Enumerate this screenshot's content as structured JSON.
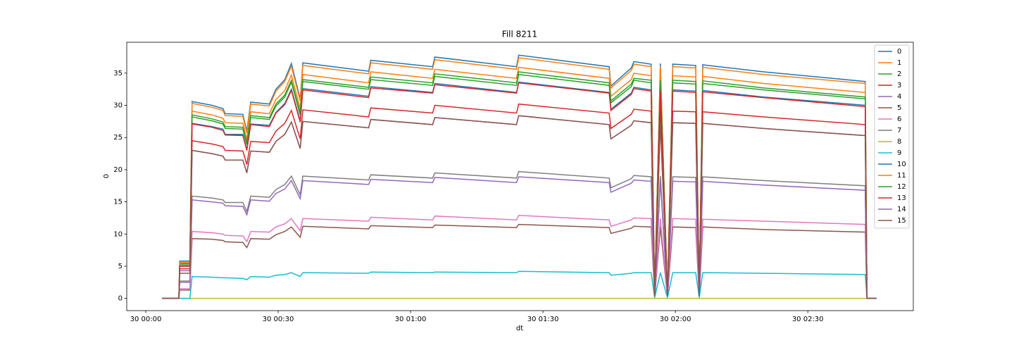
{
  "chart_data": {
    "type": "line",
    "title": "Fill 8211",
    "xlabel": "dt",
    "ylabel": "0",
    "x": [
      3.7,
      7.5,
      7.7,
      10.0,
      10.5,
      15.0,
      17.5,
      18.0,
      22.0,
      22.9,
      23.8,
      28.0,
      29.5,
      31.5,
      33.0,
      35.0,
      35.6,
      50.5,
      51.0,
      65.0,
      65.5,
      84.0,
      84.5,
      105.0,
      105.4,
      110.0,
      110.6,
      114.5,
      115.3,
      116.6,
      118.2,
      119.4,
      124.6,
      125.4,
      126.2,
      140.0,
      163.0,
      163.4,
      165.6
    ],
    "xlim": [
      -4.3,
      173.9
    ],
    "xticks": [
      {
        "value": 0,
        "label": "30 00:00"
      },
      {
        "value": 30,
        "label": "30 00:30"
      },
      {
        "value": 60,
        "label": "30 01:00"
      },
      {
        "value": 90,
        "label": "30 01:30"
      },
      {
        "value": 120,
        "label": "30 02:00"
      },
      {
        "value": 150,
        "label": "30 02:30"
      }
    ],
    "ylim": [
      -1.9,
      39.8
    ],
    "yticks": [
      0,
      5,
      10,
      15,
      20,
      25,
      30,
      35
    ],
    "legend": "upper right",
    "series": [
      {
        "name": "0",
        "color": "#1f77b4",
        "values": [
          0,
          0,
          5.8,
          5.8,
          30.6,
          30.0,
          29.5,
          28.7,
          28.6,
          26.0,
          30.5,
          30.2,
          32.5,
          34.0,
          36.5,
          31.0,
          36.6,
          35.3,
          37.0,
          36.0,
          37.5,
          36.0,
          37.8,
          36.0,
          33.0,
          35.8,
          36.8,
          36.4,
          0.5,
          36.5,
          0.5,
          36.4,
          36.2,
          0.5,
          36.3,
          35.2,
          33.7,
          0,
          0
        ]
      },
      {
        "name": "1",
        "color": "#ff7f0e",
        "values": [
          0,
          0,
          5.6,
          5.6,
          30.3,
          29.7,
          29.2,
          28.4,
          28.3,
          25.7,
          30.2,
          29.9,
          32.2,
          33.7,
          36.1,
          30.7,
          36.2,
          34.9,
          36.6,
          35.6,
          37.1,
          35.6,
          37.4,
          35.6,
          32.7,
          35.4,
          36.4,
          36.0,
          0.5,
          36.1,
          0.5,
          36.0,
          35.8,
          0.5,
          35.9,
          34.8,
          33.4,
          0,
          0
        ]
      },
      {
        "name": "2",
        "color": "#2ca02c",
        "values": [
          0,
          0,
          5.2,
          5.2,
          28.2,
          27.6,
          27.1,
          26.4,
          26.3,
          23.9,
          28.1,
          27.8,
          29.9,
          31.3,
          33.6,
          28.5,
          33.7,
          32.5,
          34.0,
          33.1,
          34.5,
          33.1,
          34.8,
          33.1,
          30.4,
          32.9,
          33.9,
          33.5,
          0.5,
          33.6,
          0.5,
          33.5,
          33.3,
          0.5,
          33.4,
          32.4,
          31.0,
          0,
          0
        ]
      },
      {
        "name": "3",
        "color": "#d62728",
        "values": [
          0,
          0,
          4.6,
          4.6,
          24.5,
          24.0,
          23.6,
          23.0,
          22.9,
          20.8,
          24.4,
          24.2,
          26.0,
          27.2,
          29.2,
          24.8,
          29.3,
          28.2,
          29.6,
          28.8,
          30.0,
          28.8,
          30.2,
          28.8,
          26.4,
          28.6,
          29.4,
          29.1,
          0.4,
          29.2,
          0.4,
          29.1,
          29.0,
          0.4,
          29.0,
          28.2,
          27.0,
          0,
          0
        ]
      },
      {
        "name": "4",
        "color": "#9467bd",
        "values": [
          0,
          0,
          4.3,
          4.3,
          23.0,
          22.5,
          22.1,
          21.5,
          21.5,
          19.5,
          22.9,
          22.7,
          24.4,
          25.5,
          27.4,
          23.3,
          27.5,
          26.5,
          27.8,
          27.0,
          28.1,
          27.0,
          28.4,
          27.0,
          24.8,
          26.9,
          27.6,
          27.3,
          0.4,
          27.4,
          0.4,
          27.3,
          27.2,
          0.4,
          27.2,
          26.4,
          25.3,
          0,
          0
        ]
      },
      {
        "name": "5",
        "color": "#8c564b",
        "values": [
          0,
          0,
          1.3,
          1.3,
          9.3,
          9.2,
          9.0,
          8.8,
          8.7,
          7.9,
          9.3,
          9.2,
          9.9,
          10.4,
          11.1,
          9.5,
          11.2,
          10.8,
          11.3,
          11.0,
          11.4,
          11.0,
          11.5,
          11.0,
          10.1,
          10.9,
          11.2,
          11.1,
          0.2,
          11.1,
          0.2,
          11.1,
          11.0,
          0.2,
          11.1,
          10.7,
          10.3,
          0,
          0
        ]
      },
      {
        "name": "6",
        "color": "#e377c2",
        "values": [
          0,
          0,
          1.5,
          1.5,
          10.4,
          10.2,
          10.0,
          9.8,
          9.7,
          8.8,
          10.4,
          10.3,
          11.1,
          11.6,
          12.4,
          10.5,
          12.4,
          12.0,
          12.6,
          12.2,
          12.8,
          12.2,
          12.9,
          12.2,
          11.2,
          12.2,
          12.5,
          12.4,
          0.2,
          12.4,
          0.2,
          12.4,
          12.3,
          0.2,
          12.3,
          12.0,
          11.5,
          0,
          0
        ]
      },
      {
        "name": "7",
        "color": "#7f7f7f",
        "values": [
          0,
          0,
          2.7,
          2.7,
          15.9,
          15.6,
          15.3,
          14.9,
          14.9,
          13.5,
          15.9,
          15.7,
          16.9,
          17.7,
          19.0,
          16.1,
          19.0,
          18.4,
          19.2,
          18.7,
          19.5,
          18.7,
          19.7,
          18.7,
          17.2,
          18.6,
          19.1,
          18.9,
          0.3,
          19.0,
          0.3,
          18.9,
          18.8,
          0.3,
          18.9,
          18.3,
          17.5,
          0,
          0
        ]
      },
      {
        "name": "8",
        "color": "#bcbd22",
        "values": [
          0,
          0,
          0,
          0,
          0,
          0,
          0,
          0,
          0,
          0,
          0,
          0,
          0,
          0,
          0,
          0,
          0,
          0,
          0,
          0,
          0,
          0,
          0,
          0,
          0,
          0,
          0,
          0,
          0,
          0,
          0,
          0,
          0,
          0,
          0,
          0,
          0,
          0,
          0
        ]
      },
      {
        "name": "9",
        "color": "#17becf",
        "values": [
          0,
          0,
          0,
          0,
          3.4,
          3.3,
          3.2,
          3.2,
          3.1,
          2.9,
          3.4,
          3.3,
          3.6,
          3.7,
          4.0,
          3.4,
          4.0,
          3.9,
          4.1,
          4.0,
          4.1,
          4.0,
          4.2,
          4.0,
          3.6,
          3.9,
          4.0,
          4.0,
          0.1,
          4.0,
          0.1,
          4.0,
          4.0,
          0.1,
          4.0,
          3.9,
          3.7,
          0,
          0
        ]
      },
      {
        "name": "10",
        "color": "#1f77b4",
        "values": [
          0,
          0,
          5.4,
          5.4,
          27.2,
          26.7,
          26.3,
          25.5,
          25.5,
          23.1,
          27.1,
          26.9,
          28.9,
          30.3,
          32.5,
          27.6,
          32.6,
          31.4,
          32.9,
          32.0,
          33.4,
          32.0,
          33.6,
          32.0,
          29.4,
          31.9,
          32.8,
          32.4,
          0.4,
          32.5,
          0.4,
          32.4,
          32.2,
          0.4,
          32.3,
          31.3,
          30.0,
          0,
          0
        ]
      },
      {
        "name": "11",
        "color": "#ff7f0e",
        "values": [
          0,
          0,
          5.5,
          5.5,
          29.1,
          28.5,
          28.0,
          27.3,
          27.2,
          24.7,
          29.0,
          28.7,
          30.9,
          32.3,
          34.7,
          29.5,
          34.8,
          33.5,
          35.2,
          34.2,
          35.6,
          34.2,
          35.9,
          34.2,
          31.4,
          34.0,
          35.0,
          34.6,
          0.5,
          34.7,
          0.5,
          34.6,
          34.4,
          0.5,
          34.5,
          33.4,
          32.0,
          0,
          0
        ]
      },
      {
        "name": "12",
        "color": "#2ca02c",
        "values": [
          0,
          0,
          5.0,
          5.0,
          28.5,
          27.9,
          27.4,
          26.7,
          26.6,
          24.2,
          28.4,
          28.1,
          30.2,
          31.6,
          33.9,
          28.8,
          34.0,
          32.8,
          34.4,
          33.5,
          34.9,
          33.5,
          35.2,
          33.5,
          30.7,
          33.3,
          34.2,
          33.9,
          0.5,
          33.9,
          0.5,
          33.9,
          33.7,
          0.5,
          33.8,
          32.7,
          31.3,
          0,
          0
        ]
      },
      {
        "name": "13",
        "color": "#d62728",
        "values": [
          0,
          0,
          5.0,
          5.0,
          27.1,
          26.6,
          26.1,
          25.4,
          25.3,
          23.0,
          27.0,
          26.7,
          28.8,
          30.1,
          32.3,
          27.4,
          32.4,
          31.2,
          32.7,
          31.9,
          33.2,
          31.9,
          33.5,
          31.9,
          29.2,
          31.7,
          32.6,
          32.2,
          0.4,
          32.3,
          0.4,
          32.2,
          32.0,
          0.4,
          32.1,
          31.2,
          29.8,
          0,
          0
        ]
      },
      {
        "name": "14",
        "color": "#9467bd",
        "values": [
          0,
          0,
          2.5,
          2.5,
          15.3,
          15.0,
          14.8,
          14.4,
          14.3,
          13.0,
          15.3,
          15.1,
          16.3,
          17.0,
          18.3,
          15.5,
          18.3,
          17.7,
          18.5,
          18.0,
          18.8,
          18.0,
          18.9,
          18.0,
          16.5,
          17.9,
          18.4,
          18.2,
          0.3,
          18.3,
          0.3,
          18.2,
          18.1,
          0.3,
          18.2,
          17.6,
          16.8,
          0,
          0
        ]
      },
      {
        "name": "15",
        "color": "#8c564b",
        "values": [
          0,
          0,
          3.9,
          3.9,
          23.0,
          22.5,
          22.1,
          21.5,
          21.5,
          19.5,
          22.9,
          22.7,
          24.4,
          25.5,
          27.4,
          23.3,
          27.5,
          26.5,
          27.8,
          27.0,
          28.1,
          27.0,
          28.4,
          27.0,
          24.8,
          26.9,
          27.6,
          27.3,
          0.4,
          27.4,
          0.4,
          27.3,
          27.2,
          0.4,
          27.2,
          26.4,
          25.3,
          0,
          0
        ]
      }
    ]
  }
}
